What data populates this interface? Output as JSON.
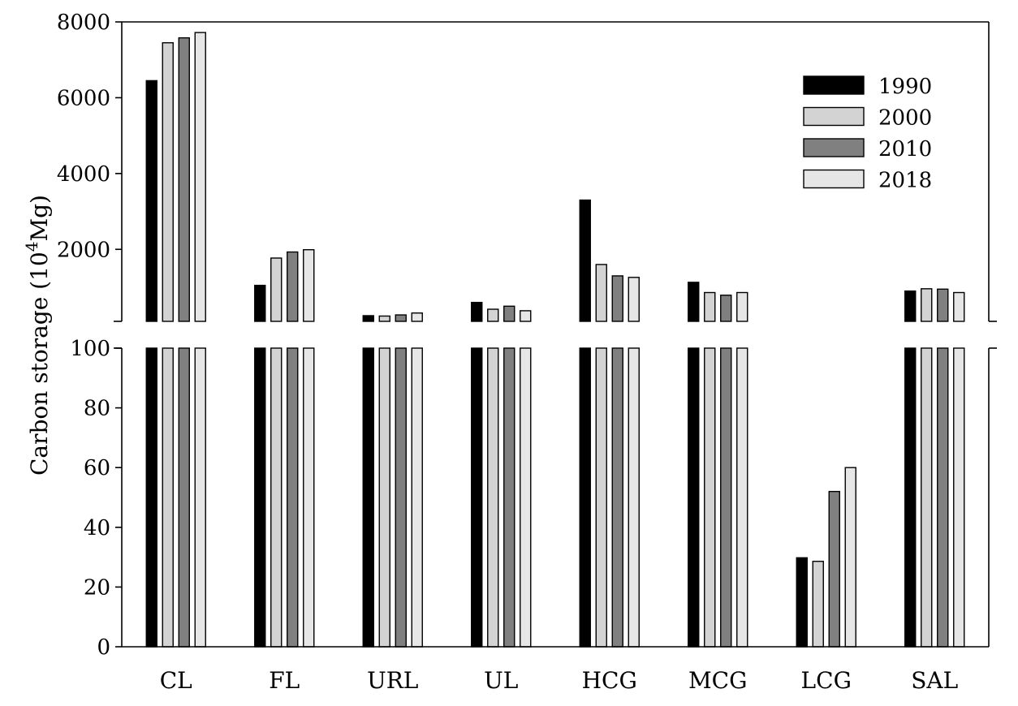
{
  "chart_data": {
    "type": "bar",
    "ylabel": "Carbon storage (10",
    "ylabel_superscript": "4",
    "ylabel_suffix": "Mg)",
    "categories": [
      "CL",
      "FL",
      "URL",
      "UL",
      "HCG",
      "MCG",
      "LCG",
      "SAL"
    ],
    "series": [
      {
        "name": "1990",
        "color": "#000000",
        "values": [
          6450,
          1050,
          250,
          600,
          3300,
          1130,
          29.8,
          900
        ]
      },
      {
        "name": "2000",
        "color": "#d3d3d3",
        "values": [
          7450,
          1770,
          240,
          420,
          1600,
          860,
          28.6,
          960
        ]
      },
      {
        "name": "2010",
        "color": "#808080",
        "values": [
          7580,
          1930,
          270,
          500,
          1300,
          790,
          52,
          950
        ]
      },
      {
        "name": "2018",
        "color": "#e6e6e6",
        "values": [
          7720,
          1990,
          320,
          380,
          1260,
          860,
          60,
          860
        ]
      }
    ],
    "y_axis_break": true,
    "lower_segment": {
      "ylim": [
        0,
        100
      ],
      "ticks": [
        "0",
        "20",
        "40",
        "60",
        "80",
        "100"
      ]
    },
    "upper_segment": {
      "ylim": [
        100,
        8000
      ],
      "ticks": [
        "2000",
        "4000",
        "6000",
        "8000"
      ]
    },
    "legend_placement": "top-right",
    "grid": false
  }
}
